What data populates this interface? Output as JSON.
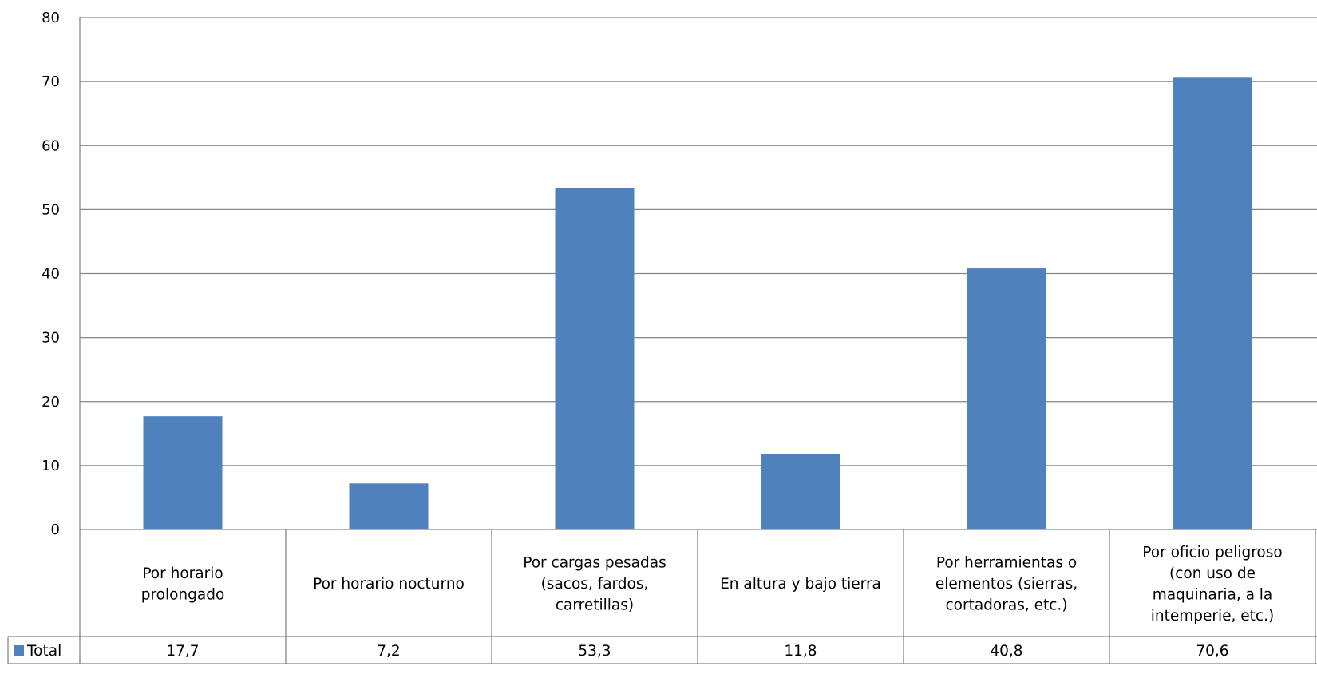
{
  "chart_data": {
    "type": "bar",
    "categories": [
      [
        "Por horario",
        "prolongado"
      ],
      [
        "Por horario nocturno"
      ],
      [
        "Por cargas pesadas",
        "(sacos, fardos,",
        "carretillas)"
      ],
      [
        "En altura y bajo tierra"
      ],
      [
        "Por herramientas o",
        "elementos (sierras,",
        "cortadoras, etc.)"
      ],
      [
        "Por oficio peligroso",
        "(con uso de",
        "maquinaria, a la",
        "intemperie, etc.)"
      ]
    ],
    "series": [
      {
        "name": "Total",
        "values": [
          17.7,
          7.2,
          53.3,
          11.8,
          40.8,
          70.6
        ]
      }
    ],
    "value_labels": [
      "17,7",
      "7,2",
      "53,3",
      "11,8",
      "40,8",
      "70,6"
    ],
    "ylim": [
      0,
      80
    ],
    "yticks": [
      "0",
      "10",
      "20",
      "30",
      "40",
      "50",
      "60",
      "70",
      "80"
    ],
    "grid": true,
    "legend": "data-table",
    "colors": {
      "bar": "#4f81bd",
      "grid": "#868686",
      "axis": "#868686"
    }
  }
}
